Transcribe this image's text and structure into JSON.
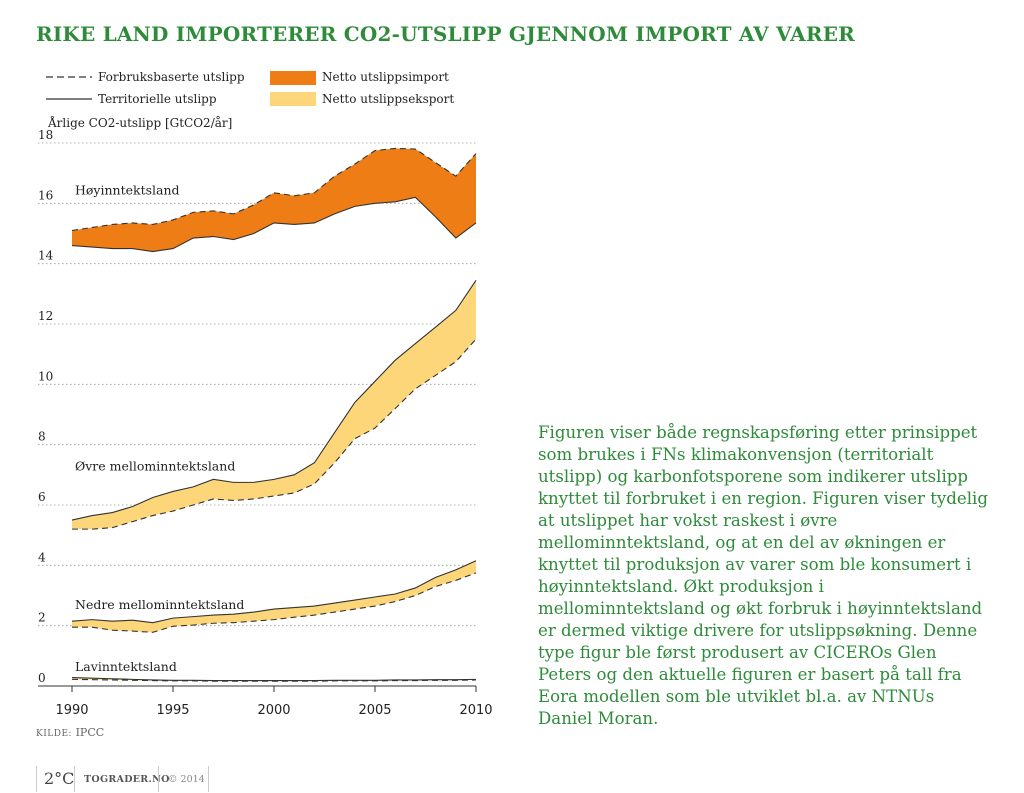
{
  "title": "RIKE LAND IMPORTERER CO2-UTSLIPP GJENNOM IMPORT AV VARER",
  "legend": [
    {
      "label": "Forbruksbaserte utslipp",
      "style": "dashed",
      "color": "#333333"
    },
    {
      "label": "Territorielle utslipp",
      "style": "solid",
      "color": "#333333"
    },
    {
      "label": "Netto utslippsimport",
      "style": "fill",
      "color": "#ee7d15"
    },
    {
      "label": "Netto utslippseksport",
      "style": "fill",
      "color": "#fcd679"
    }
  ],
  "description": "Figuren viser både regnskapsføring etter prinsippet som brukes i FNs klimakonvensjon (territorialt utslipp) og karbonfotsporene som indikerer utslipp knyttet til forbruket i en region. Figuren viser tydelig at utslippet har vokst raskest i øvre mellominntektsland, og at en del av økningen er knyttet til produksjon av varer som ble konsumert i høyinntektsland. Økt produksjon i mellominntektsland og økt forbruk i høyinntektsland er dermed viktige drivere for utslippsøkning. Denne type figur ble først produsert av CICEROs Glen Peters og den aktuelle figuren er basert på tall fra Eora modellen som ble utviklet bl.a. av NTNUs Daniel Moran.",
  "source": {
    "label": "KILDE:",
    "value": "IPCC"
  },
  "footer": {
    "logo": "2°C",
    "site": "TOGRADER.NO",
    "copyright": "© 2014"
  },
  "chart_data": {
    "type": "area",
    "ylabel": "Årlige CO2-utslipp [GtCO2/år]",
    "xlim": [
      1990,
      2010
    ],
    "ylim": [
      0,
      18
    ],
    "x_ticks": [
      1990,
      1995,
      2000,
      2005,
      2010
    ],
    "y_ticks": [
      0,
      2,
      4,
      6,
      8,
      10,
      12,
      14,
      16,
      18
    ],
    "grid": "horizontal-dotted",
    "x": [
      1990,
      1991,
      1992,
      1993,
      1994,
      1995,
      1996,
      1997,
      1998,
      1999,
      2000,
      2001,
      2002,
      2003,
      2004,
      2005,
      2006,
      2007,
      2008,
      2009,
      2010
    ],
    "series": [
      {
        "name": "Høyinntektsland",
        "fill": "netto-utslippsimport",
        "consumption": [
          15.1,
          15.2,
          15.3,
          15.35,
          15.3,
          15.45,
          15.7,
          15.75,
          15.65,
          15.95,
          16.35,
          16.25,
          16.35,
          16.9,
          17.3,
          17.75,
          17.82,
          17.8,
          17.35,
          16.9,
          17.65
        ],
        "territorial": [
          14.6,
          14.55,
          14.5,
          14.5,
          14.4,
          14.5,
          14.85,
          14.9,
          14.8,
          15.0,
          15.35,
          15.3,
          15.35,
          15.65,
          15.9,
          16.0,
          16.05,
          16.2,
          15.55,
          14.85,
          15.35
        ]
      },
      {
        "name": "Øvre mellominntektsland",
        "fill": "netto-utslippseksport",
        "consumption": [
          5.2,
          5.2,
          5.25,
          5.45,
          5.65,
          5.8,
          6.0,
          6.2,
          6.15,
          6.2,
          6.3,
          6.4,
          6.7,
          7.4,
          8.2,
          8.55,
          9.2,
          9.85,
          10.3,
          10.75,
          11.5
        ],
        "territorial": [
          5.5,
          5.65,
          5.75,
          5.95,
          6.25,
          6.45,
          6.6,
          6.85,
          6.75,
          6.75,
          6.85,
          7.0,
          7.4,
          8.4,
          9.4,
          10.1,
          10.8,
          11.35,
          11.9,
          12.45,
          13.45
        ]
      },
      {
        "name": "Nedre mellominntektsland",
        "fill": "netto-utslippseksport",
        "consumption": [
          1.95,
          1.95,
          1.85,
          1.82,
          1.78,
          1.98,
          2.02,
          2.08,
          2.1,
          2.15,
          2.2,
          2.28,
          2.35,
          2.45,
          2.55,
          2.65,
          2.8,
          3.0,
          3.3,
          3.5,
          3.75
        ],
        "territorial": [
          2.15,
          2.2,
          2.15,
          2.18,
          2.1,
          2.25,
          2.3,
          2.35,
          2.38,
          2.45,
          2.55,
          2.6,
          2.65,
          2.75,
          2.85,
          2.95,
          3.05,
          3.25,
          3.6,
          3.85,
          4.15
        ]
      },
      {
        "name": "Lavinntektsland",
        "fill": "netto-utslippseksport",
        "consumption": [
          0.22,
          0.21,
          0.2,
          0.19,
          0.18,
          0.17,
          0.17,
          0.16,
          0.16,
          0.16,
          0.16,
          0.16,
          0.16,
          0.17,
          0.17,
          0.17,
          0.18,
          0.18,
          0.19,
          0.19,
          0.2
        ],
        "territorial": [
          0.28,
          0.26,
          0.24,
          0.22,
          0.2,
          0.19,
          0.19,
          0.18,
          0.18,
          0.18,
          0.18,
          0.18,
          0.18,
          0.19,
          0.19,
          0.19,
          0.2,
          0.2,
          0.21,
          0.21,
          0.22
        ]
      }
    ]
  }
}
